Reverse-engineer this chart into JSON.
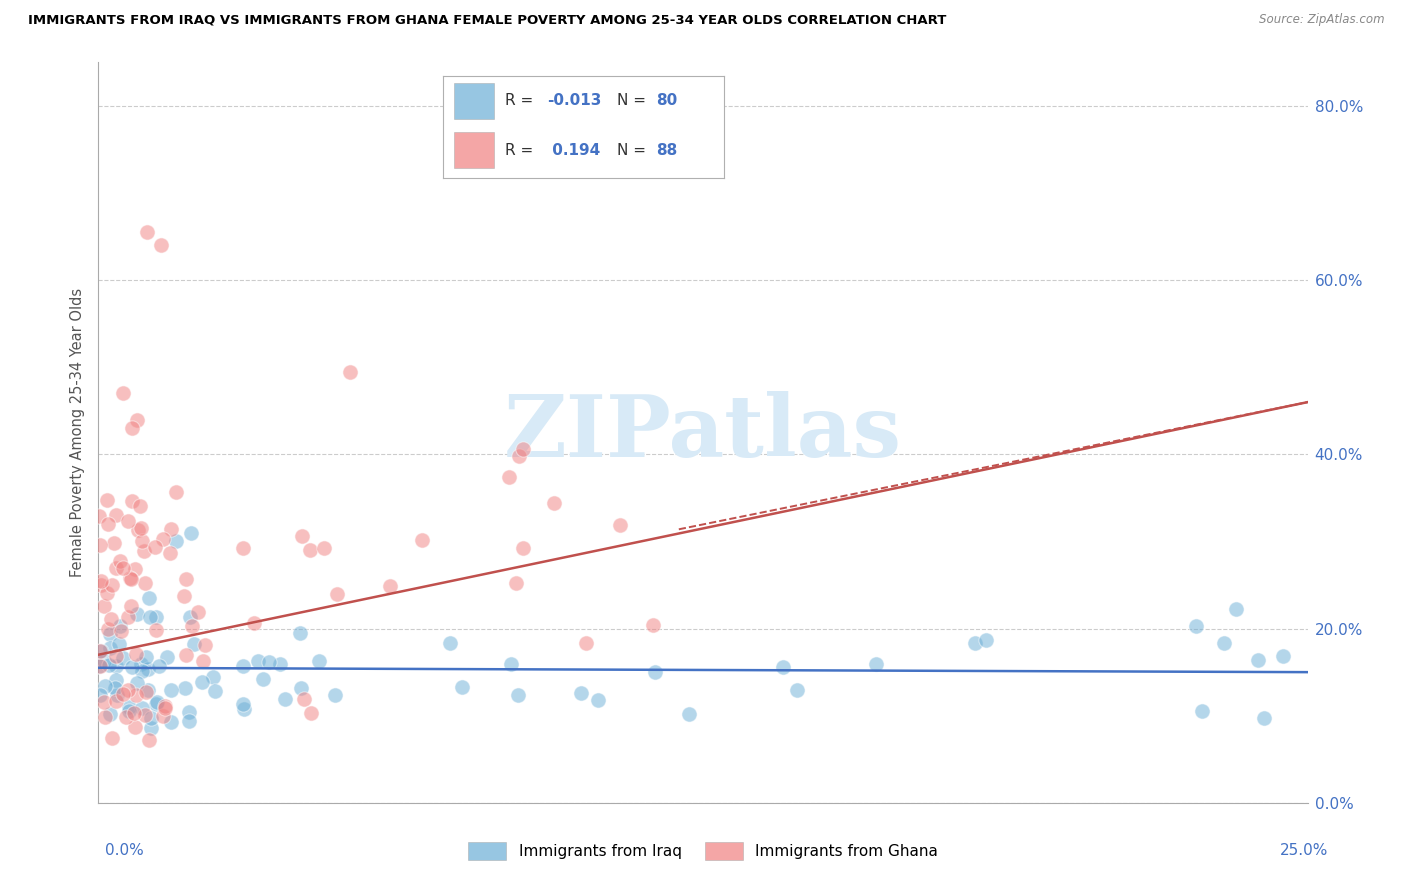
{
  "title": "IMMIGRANTS FROM IRAQ VS IMMIGRANTS FROM GHANA FEMALE POVERTY AMONG 25-34 YEAR OLDS CORRELATION CHART",
  "source": "Source: ZipAtlas.com",
  "ylabel": "Female Poverty Among 25-34 Year Olds",
  "xlim": [
    0.0,
    0.25
  ],
  "ylim": [
    0.0,
    0.85
  ],
  "iraq_R": -0.013,
  "iraq_N": 80,
  "ghana_R": 0.194,
  "ghana_N": 88,
  "iraq_color": "#6baed6",
  "ghana_color": "#f08080",
  "iraq_trend_color": "#4472c4",
  "ghana_trend_color": "#c0504d",
  "legend_R_color": "#4472c4",
  "legend_N_color": "#4472c4",
  "watermark_color": "#d8eaf7",
  "legend_labels": [
    "Immigrants from Iraq",
    "Immigrants from Ghana"
  ],
  "tick_color": "#4472c4",
  "ytick_vals": [
    0.0,
    0.2,
    0.4,
    0.6,
    0.8
  ],
  "ytick_labels": [
    "0.0%",
    "20.0%",
    "40.0%",
    "60.0%",
    "80.0%"
  ]
}
